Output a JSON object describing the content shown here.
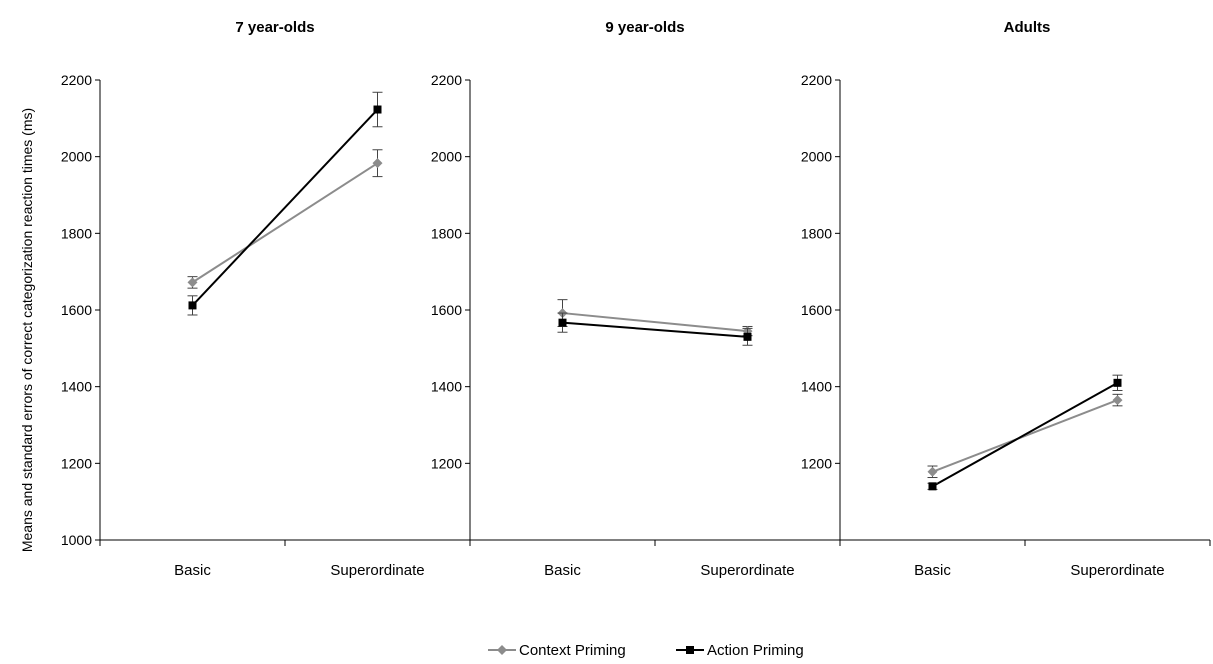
{
  "chart_data": {
    "type": "line",
    "ylabel": "Means and standard errors of correct categorization reaction times (ms)",
    "categories": [
      "Basic",
      "Superordinate"
    ],
    "legend": {
      "position": "bottom",
      "entries": [
        {
          "name": "Context Priming",
          "color": "#8c8c8c",
          "marker": "diamond"
        },
        {
          "name": "Action Priming",
          "color": "#000000",
          "marker": "square"
        }
      ]
    },
    "panels": [
      {
        "title": "7 year-olds",
        "ylim": [
          1000,
          2200
        ],
        "yticks": [
          1000,
          1200,
          1400,
          1600,
          1800,
          2000,
          2200
        ],
        "series": [
          {
            "name": "Context Priming",
            "values": [
              1672,
              1983
            ],
            "errors": [
              15,
              35
            ]
          },
          {
            "name": "Action Priming",
            "values": [
              1612,
              2123
            ],
            "errors": [
              25,
              45
            ]
          }
        ]
      },
      {
        "title": "9 year-olds",
        "ylim": [
          1000,
          2200
        ],
        "yticks": [
          1200,
          1400,
          1600,
          1800,
          2000,
          2200
        ],
        "series": [
          {
            "name": "Context Priming",
            "values": [
              1592,
              1545
            ],
            "errors": [
              35,
              12
            ]
          },
          {
            "name": "Action Priming",
            "values": [
              1567,
              1530
            ],
            "errors": [
              25,
              22
            ]
          }
        ]
      },
      {
        "title": "Adults",
        "ylim": [
          1000,
          2200
        ],
        "yticks": [
          1200,
          1400,
          1600,
          1800,
          2000,
          2200
        ],
        "series": [
          {
            "name": "Context Priming",
            "values": [
              1178,
              1365
            ],
            "errors": [
              15,
              15
            ]
          },
          {
            "name": "Action Priming",
            "values": [
              1140,
              1410
            ],
            "errors": [
              8,
              20
            ]
          }
        ]
      }
    ]
  }
}
